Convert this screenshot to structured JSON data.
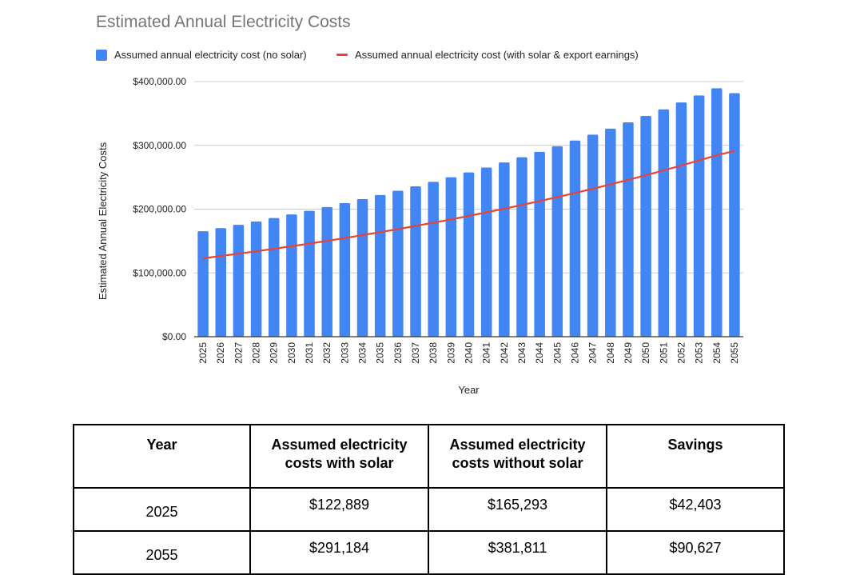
{
  "chart_data": {
    "type": "bar",
    "title": "Estimated Annual Electricity Costs",
    "xlabel": "Year",
    "ylabel": "Estimated Annual Electricity Costs",
    "ylim": [
      0,
      400000
    ],
    "yticks": [
      {
        "value": 0,
        "label": "$0.00"
      },
      {
        "value": 100000,
        "label": "$100,000.00"
      },
      {
        "value": 200000,
        "label": "$200,000.00"
      },
      {
        "value": 300000,
        "label": "$300,000.00"
      },
      {
        "value": 400000,
        "label": "$400,000.00"
      }
    ],
    "grid": true,
    "legend_position": "top",
    "categories": [
      "2025",
      "2026",
      "2027",
      "2028",
      "2029",
      "2030",
      "2031",
      "2032",
      "2033",
      "2034",
      "2035",
      "2036",
      "2037",
      "2038",
      "2039",
      "2040",
      "2041",
      "2042",
      "2043",
      "2044",
      "2045",
      "2046",
      "2047",
      "2048",
      "2049",
      "2050",
      "2051",
      "2052",
      "2053",
      "2054",
      "2055"
    ],
    "series": [
      {
        "name": "Assumed annual electricity cost (no solar)",
        "kind": "bar",
        "color": "#4285f4",
        "values": [
          165293,
          170252,
          175359,
          180620,
          186039,
          191620,
          197369,
          203290,
          209389,
          215670,
          222140,
          228805,
          235669,
          242739,
          250021,
          257522,
          265247,
          273205,
          281401,
          289843,
          298538,
          307495,
          316719,
          326221,
          336008,
          346088,
          356470,
          367165,
          378180,
          389525,
          381811
        ]
      },
      {
        "name": "Assumed annual electricity cost (with solar & export earnings)",
        "kind": "line",
        "color": "#ea4335",
        "values": [
          122889,
          126462,
          130142,
          133933,
          137837,
          141859,
          146001,
          150268,
          154664,
          159192,
          163856,
          168660,
          173607,
          178704,
          183953,
          189360,
          194929,
          200665,
          206573,
          212659,
          218927,
          225383,
          232033,
          238883,
          245938,
          253205,
          260689,
          268399,
          276340,
          284519,
          291184
        ]
      }
    ]
  },
  "table": {
    "headers": {
      "year": "Year",
      "with_solar": "Assumed electricity costs with solar",
      "without_solar": "Assumed electricity costs without solar",
      "savings": "Savings"
    },
    "rows": [
      {
        "year": "2025",
        "with_solar": "$122,889",
        "without_solar": "$165,293",
        "savings": "$42,403"
      },
      {
        "year": "2055",
        "with_solar": "$291,184",
        "without_solar": "$381,811",
        "savings": "$90,627"
      }
    ]
  }
}
